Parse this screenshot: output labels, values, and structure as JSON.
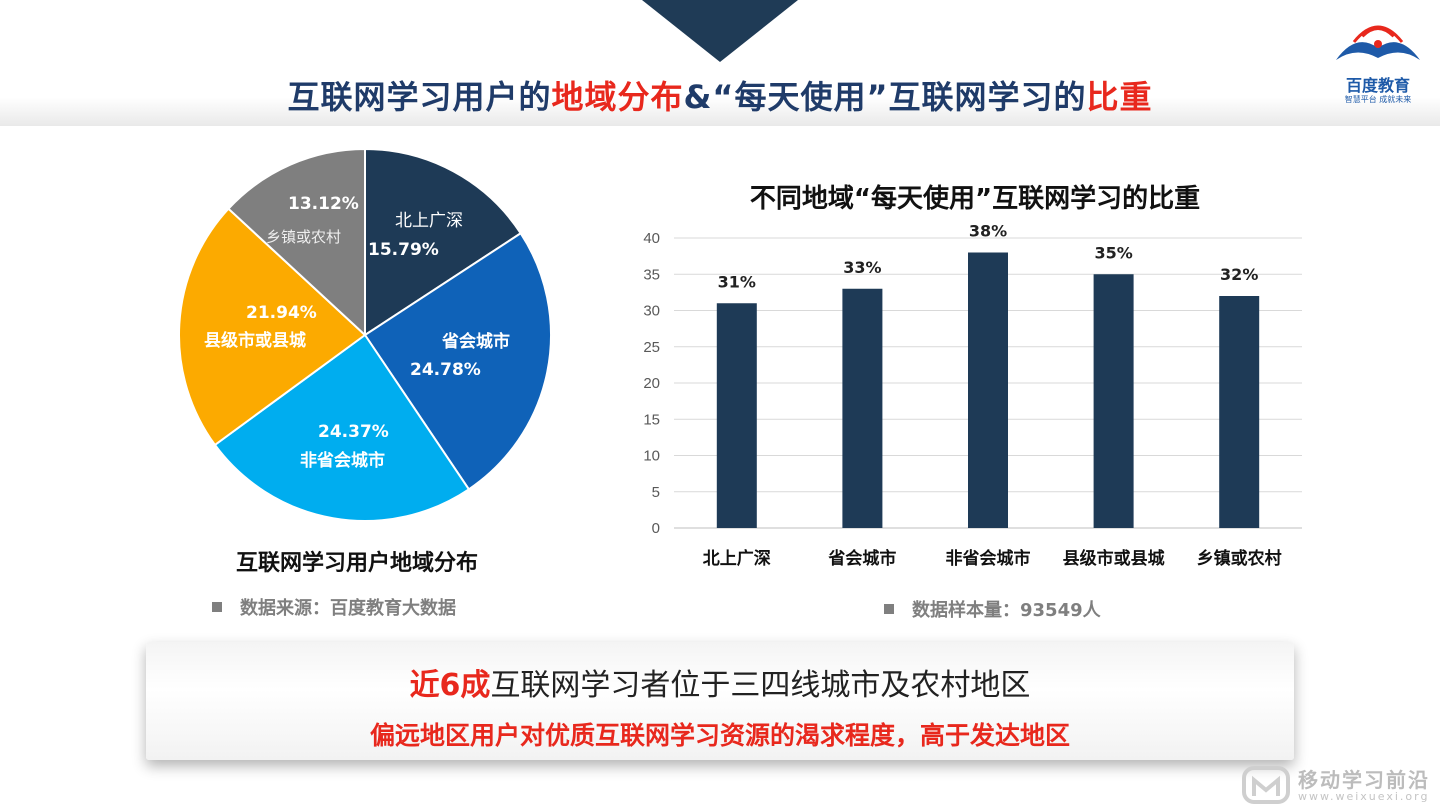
{
  "header": {
    "title_part1": "互联网学习用户的",
    "title_part2": "地域分布",
    "title_part3": "&“每天使用”互联网学习的",
    "title_part4": "比重"
  },
  "logo": {
    "name": "百度教育",
    "tagline": "智慧平台 成就未来"
  },
  "pie": {
    "title": "互联网学习用户地域分布",
    "source_note": "数据来源：百度教育大数据"
  },
  "bar": {
    "title": "不同地域“每天使用”互联网学习的比重",
    "sample_note": "数据样本量：93549人"
  },
  "banner": {
    "line1_highlight": "近6成",
    "line1_rest": "互联网学习者位于三四线城市及农村地区",
    "line2": "偏远地区用户对优质互联网学习资源的渴求程度，高于发达地区"
  },
  "watermark": {
    "main": "移动学习前沿",
    "sub": "www.weixuexi.org"
  },
  "chart_data": [
    {
      "type": "pie",
      "title": "互联网学习用户地域分布",
      "slices": [
        {
          "label": "北上广深",
          "value": 15.79,
          "value_label": "15.79%",
          "color": "#1e3a56"
        },
        {
          "label": "省会城市",
          "value": 24.78,
          "value_label": "24.78%",
          "color": "#0f62b8"
        },
        {
          "label": "非省会城市",
          "value": 24.37,
          "value_label": "24.37%",
          "color": "#00adef"
        },
        {
          "label": "县级市或县城",
          "value": 21.94,
          "value_label": "21.94%",
          "color": "#fcaa00"
        },
        {
          "label": "乡镇或农村",
          "value": 13.12,
          "value_label": "13.12%",
          "color": "#7f7f7f"
        }
      ]
    },
    {
      "type": "bar",
      "title": "不同地域“每天使用”互联网学习的比重",
      "categories": [
        "北上广深",
        "省会城市",
        "非省会城市",
        "县级市或县城",
        "乡镇或农村"
      ],
      "values": [
        31,
        33,
        38,
        35,
        32
      ],
      "data_labels": [
        "31%",
        "33%",
        "38%",
        "35%",
        "32%"
      ],
      "ylim": [
        0,
        40
      ],
      "yticks": [
        "0",
        "5",
        "10",
        "15",
        "20",
        "25",
        "30",
        "35",
        "40"
      ],
      "grid": true,
      "bar_color": "#1e3a56"
    }
  ]
}
